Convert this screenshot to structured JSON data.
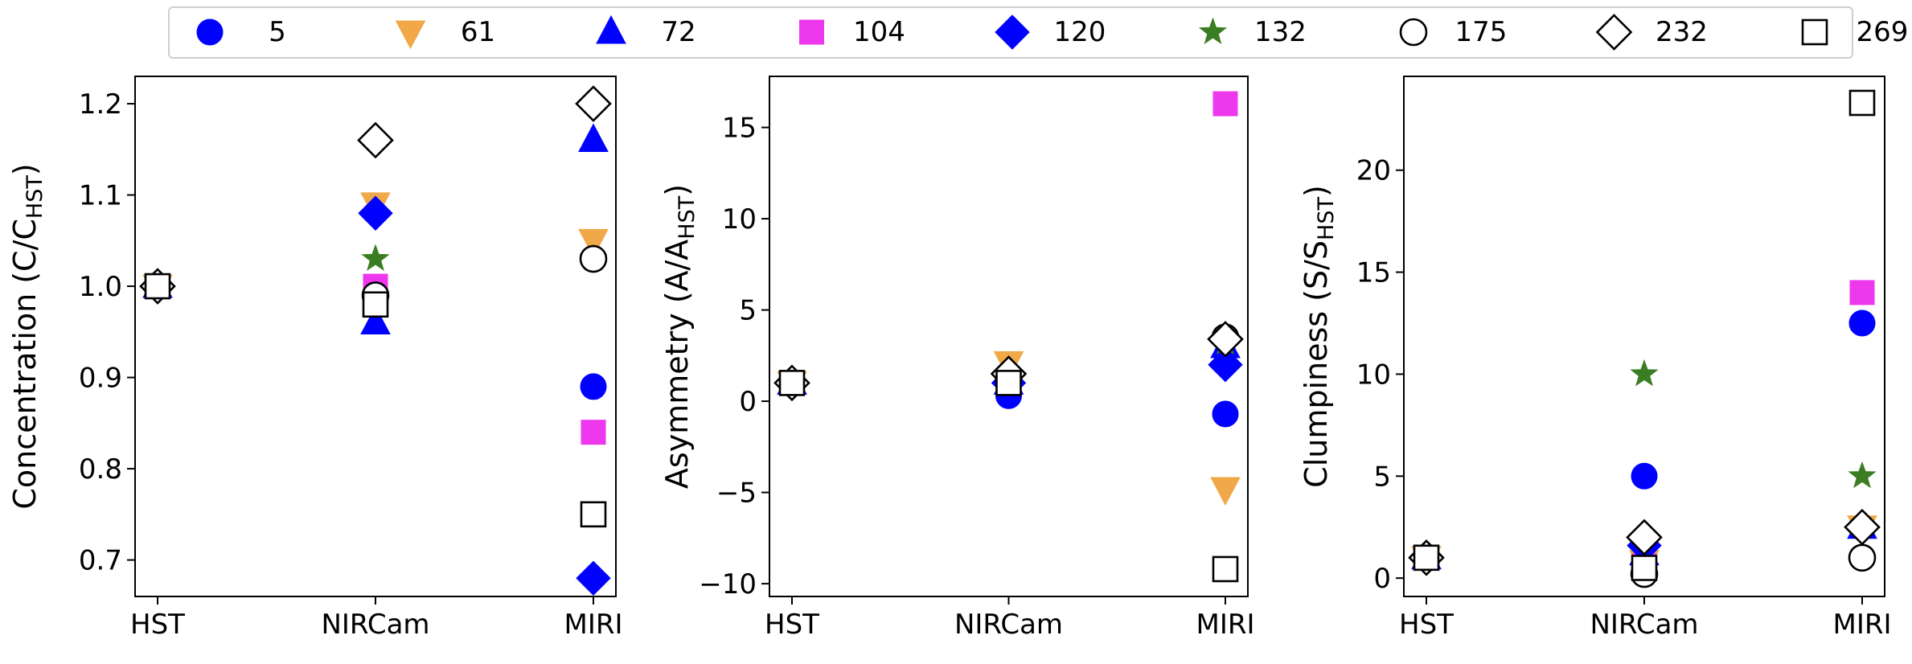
{
  "legend": {
    "entries": [
      {
        "label": "5",
        "marker": "circle",
        "color": "#0000ff",
        "filled": true
      },
      {
        "label": "61",
        "marker": "triangle-down",
        "color": "#f0a848",
        "filled": true
      },
      {
        "label": "72",
        "marker": "triangle-up",
        "color": "#0000ff",
        "filled": true
      },
      {
        "label": "104",
        "marker": "square",
        "color": "#ee38ee",
        "filled": true
      },
      {
        "label": "120",
        "marker": "diamond",
        "color": "#0000ff",
        "filled": true
      },
      {
        "label": "132",
        "marker": "star",
        "color": "#3a7d22",
        "filled": true
      },
      {
        "label": "175",
        "marker": "circle",
        "color": "#000000",
        "filled": false
      },
      {
        "label": "232",
        "marker": "diamond",
        "color": "#000000",
        "filled": false
      },
      {
        "label": "269",
        "marker": "square",
        "color": "#000000",
        "filled": false
      }
    ]
  },
  "chart_data": [
    {
      "type": "scatter",
      "ylabel": "Concentration (C/C",
      "ylabel_sub": "HST",
      "ylabel_end": ")",
      "categories": [
        "HST",
        "NIRCam",
        "MIRI"
      ],
      "ylim": [
        0.66,
        1.23
      ],
      "yticks": [
        0.7,
        0.8,
        0.9,
        1.0,
        1.1,
        1.2
      ],
      "yticklabels": [
        "0.7",
        "0.8",
        "0.9",
        "1.0",
        "1.1",
        "1.2"
      ],
      "series": [
        {
          "name": "5",
          "values": [
            1.0,
            0.99,
            0.89
          ]
        },
        {
          "name": "61",
          "values": [
            1.0,
            1.09,
            1.05
          ]
        },
        {
          "name": "72",
          "values": [
            1.0,
            0.96,
            1.16
          ]
        },
        {
          "name": "104",
          "values": [
            1.0,
            1.0,
            0.84
          ]
        },
        {
          "name": "120",
          "values": [
            1.0,
            1.08,
            0.68
          ]
        },
        {
          "name": "132",
          "values": [
            1.0,
            1.03,
            1.03
          ]
        },
        {
          "name": "175",
          "values": [
            1.0,
            0.99,
            1.03
          ]
        },
        {
          "name": "232",
          "values": [
            1.0,
            1.16,
            1.2
          ]
        },
        {
          "name": "269",
          "values": [
            1.0,
            0.98,
            0.75
          ]
        }
      ]
    },
    {
      "type": "scatter",
      "ylabel": "Asymmetry (A/A",
      "ylabel_sub": "HST",
      "ylabel_end": ")",
      "categories": [
        "HST",
        "NIRCam",
        "MIRI"
      ],
      "ylim": [
        -10.7,
        17.8
      ],
      "yticks": [
        -10,
        -5,
        0,
        5,
        10,
        15
      ],
      "yticklabels": [
        "−10",
        "−5",
        "0",
        "5",
        "10",
        "15"
      ],
      "series": [
        {
          "name": "5",
          "values": [
            1.0,
            0.3,
            -0.7
          ]
        },
        {
          "name": "61",
          "values": [
            1.0,
            2.1,
            -4.8
          ]
        },
        {
          "name": "72",
          "values": [
            1.0,
            1.0,
            3.0
          ]
        },
        {
          "name": "104",
          "values": [
            1.0,
            1.0,
            16.3
          ]
        },
        {
          "name": "120",
          "values": [
            1.0,
            1.0,
            2.0
          ]
        },
        {
          "name": "132",
          "values": [
            1.0,
            1.2,
            3.2
          ]
        },
        {
          "name": "175",
          "values": [
            1.0,
            1.3,
            3.5
          ]
        },
        {
          "name": "232",
          "values": [
            1.0,
            1.5,
            3.4
          ]
        },
        {
          "name": "269",
          "values": [
            1.0,
            1.0,
            -9.2
          ]
        }
      ]
    },
    {
      "type": "scatter",
      "ylabel": "Clumpiness (S/S",
      "ylabel_sub": "HST",
      "ylabel_end": ")",
      "categories": [
        "HST",
        "NIRCam",
        "MIRI"
      ],
      "ylim": [
        -0.9,
        24.6
      ],
      "yticks": [
        0,
        5,
        10,
        15,
        20
      ],
      "yticklabels": [
        "0",
        "5",
        "10",
        "15",
        "20"
      ],
      "series": [
        {
          "name": "5",
          "values": [
            1.0,
            5.0,
            12.5
          ]
        },
        {
          "name": "61",
          "values": [
            1.0,
            0.8,
            2.5
          ]
        },
        {
          "name": "72",
          "values": [
            1.0,
            1.2,
            2.5
          ]
        },
        {
          "name": "104",
          "values": [
            1.0,
            0.6,
            14.0
          ]
        },
        {
          "name": "120",
          "values": [
            1.0,
            1.6,
            2.5
          ]
        },
        {
          "name": "132",
          "values": [
            1.0,
            10.0,
            5.0
          ]
        },
        {
          "name": "175",
          "values": [
            1.0,
            0.2,
            1.0
          ]
        },
        {
          "name": "232",
          "values": [
            1.0,
            2.0,
            2.5
          ]
        },
        {
          "name": "269",
          "values": [
            1.0,
            0.5,
            23.3
          ]
        }
      ]
    }
  ]
}
